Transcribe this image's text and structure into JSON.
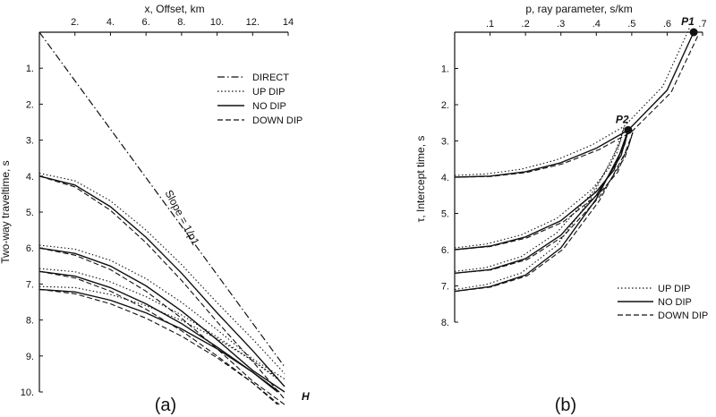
{
  "chart_data": [
    {
      "type": "line",
      "panel": "(a)",
      "title": "",
      "xlabel": "x, Offset, km",
      "ylabel": "Two-way traveltime, s",
      "xlim": [
        0,
        14
      ],
      "ylim": [
        0,
        10
      ],
      "x_ticks": [
        "2.",
        "4.",
        "6.",
        "8.",
        "10.",
        "12.",
        "14"
      ],
      "y_ticks": [
        "1.",
        "2.",
        "3.",
        "4.",
        "5.",
        "6.",
        "7.",
        "8.",
        "9.",
        "10."
      ],
      "annotations": [
        "Slope = 1/p1",
        "H"
      ],
      "legend": [
        "DIRECT",
        "UP DIP",
        "NO DIP",
        "DOWN DIP"
      ],
      "series": [
        {
          "name": "DIRECT",
          "x": [
            0,
            13.8
          ],
          "y": [
            0,
            9.3
          ]
        },
        {
          "name": "NO DIP t0=4.0",
          "x": [
            0,
            2,
            4,
            6,
            8,
            10,
            12,
            13.8
          ],
          "y": [
            4.0,
            4.25,
            4.85,
            5.7,
            6.7,
            7.8,
            8.85,
            9.85
          ]
        },
        {
          "name": "NO DIP t0=6.0",
          "x": [
            0,
            2,
            4,
            6,
            8,
            10,
            12,
            13.8
          ],
          "y": [
            6.0,
            6.15,
            6.5,
            7.05,
            7.75,
            8.55,
            9.4,
            10.0
          ]
        },
        {
          "name": "NO DIP t0=6.65",
          "x": [
            0,
            2,
            4,
            6,
            8,
            10,
            12,
            13.5
          ],
          "y": [
            6.65,
            6.78,
            7.1,
            7.55,
            8.1,
            8.75,
            9.45,
            10.0
          ]
        },
        {
          "name": "NO DIP t0=7.15",
          "x": [
            0,
            2,
            4,
            6,
            8,
            10,
            12,
            13.4
          ],
          "y": [
            7.15,
            7.22,
            7.45,
            7.8,
            8.25,
            8.8,
            9.45,
            10.0
          ]
        }
      ]
    },
    {
      "type": "line",
      "panel": "(b)",
      "title": "",
      "xlabel": "p, ray parameter, s/km",
      "ylabel": "τ, Intercept time, s",
      "xlim": [
        0,
        0.7
      ],
      "ylim": [
        0,
        8
      ],
      "x_ticks": [
        ".1",
        ".2",
        ".3",
        ".4",
        ".5",
        ".6",
        ".7"
      ],
      "y_ticks": [
        "1.",
        "2.",
        "3.",
        "4.",
        "5.",
        "6.",
        "7.",
        "8."
      ],
      "annotations": [
        "P1",
        "P2"
      ],
      "points": [
        {
          "name": "P1",
          "p": 0.675,
          "tau": 0.0
        },
        {
          "name": "P2",
          "p": 0.49,
          "tau": 2.7
        }
      ],
      "legend": [
        "UP DIP",
        "NO DIP",
        "DOWN DIP"
      ],
      "series": [
        {
          "name": "NO DIP t0=4.0",
          "p": [
            0,
            0.1,
            0.2,
            0.3,
            0.4,
            0.49,
            0.6,
            0.675
          ],
          "tau": [
            4.0,
            3.97,
            3.85,
            3.6,
            3.2,
            2.7,
            1.6,
            0.0
          ]
        },
        {
          "name": "NO DIP t0=6.0",
          "p": [
            0,
            0.1,
            0.2,
            0.3,
            0.4,
            0.45,
            0.49
          ],
          "tau": [
            6.0,
            5.9,
            5.65,
            5.2,
            4.4,
            3.8,
            2.7
          ]
        },
        {
          "name": "NO DIP t0=6.65",
          "p": [
            0,
            0.1,
            0.2,
            0.3,
            0.4,
            0.47,
            0.49
          ],
          "tau": [
            6.65,
            6.55,
            6.25,
            5.6,
            4.5,
            3.4,
            2.7
          ]
        },
        {
          "name": "NO DIP t0=7.15",
          "p": [
            0,
            0.1,
            0.2,
            0.3,
            0.4,
            0.48,
            0.49
          ],
          "tau": [
            7.15,
            7.02,
            6.7,
            5.95,
            4.6,
            3.1,
            2.7
          ]
        }
      ]
    }
  ]
}
